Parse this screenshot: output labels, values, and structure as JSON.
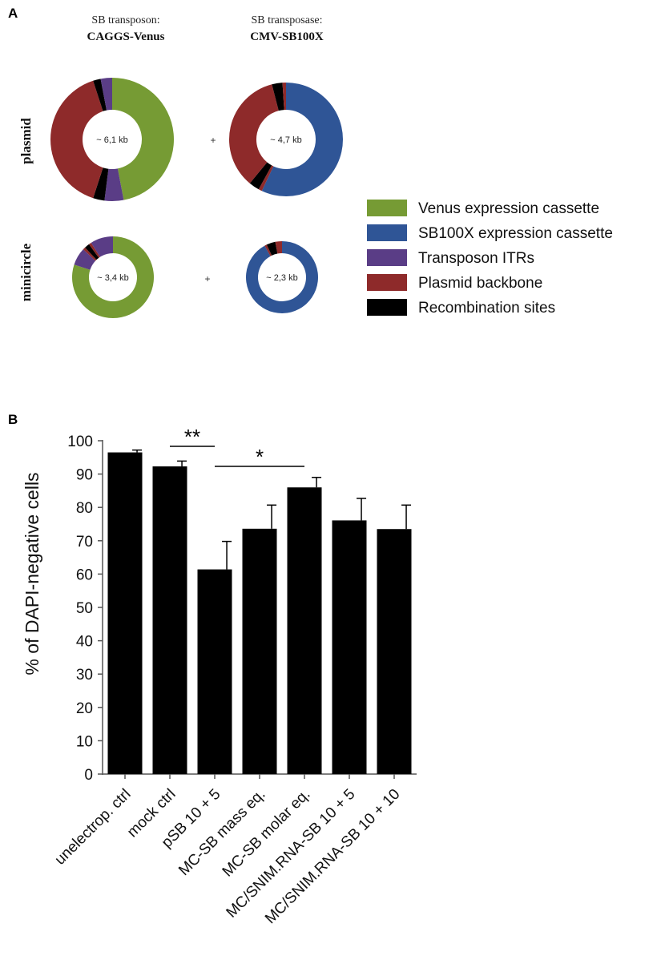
{
  "colors": {
    "venus": "#769b34",
    "sb100x": "#2f5596",
    "itr": "#5a3d86",
    "backbone": "#8e2a2a",
    "recomb": "#000000",
    "bar": "#000000"
  },
  "panel_a": {
    "letter": "A",
    "col1_title": "SB transposon:",
    "col1_name": "CAGGS-Venus",
    "col2_title": "SB transposase:",
    "col2_name": "CMV-SB100X",
    "row1_label": "plasmid",
    "row2_label": "minicircle",
    "plus": "+",
    "donut_labels": {
      "plasmid_venus": "~ 6,1 kb",
      "plasmid_sb": "~ 4,7 kb",
      "mc_venus": "~ 3,4 kb",
      "mc_sb": "~ 2,3 kb"
    },
    "legend": [
      {
        "label": "Venus expression cassette",
        "color_key": "venus"
      },
      {
        "label": "SB100X expression cassette",
        "color_key": "sb100x"
      },
      {
        "label": "Transposon ITRs",
        "color_key": "itr"
      },
      {
        "label": "Plasmid backbone",
        "color_key": "backbone"
      },
      {
        "label": "Recombination sites",
        "color_key": "recomb"
      }
    ]
  },
  "chart_data": [
    {
      "type": "pie",
      "title": "plasmid CAGGS-Venus",
      "center_label": "~ 6,1 kb",
      "slices": [
        {
          "name": "Venus expression cassette",
          "value": 47
        },
        {
          "name": "Transposon ITRs",
          "value": 5
        },
        {
          "name": "Recombination sites",
          "value": 3
        },
        {
          "name": "Plasmid backbone",
          "value": 40
        },
        {
          "name": "Recombination sites",
          "value": 2
        },
        {
          "name": "Transposon ITRs",
          "value": 3
        }
      ]
    },
    {
      "type": "pie",
      "title": "plasmid CMV-SB100X",
      "center_label": "~ 4,7 kb",
      "slices": [
        {
          "name": "SB100X expression cassette",
          "value": 57
        },
        {
          "name": "Plasmid backbone",
          "value": 1
        },
        {
          "name": "Recombination sites",
          "value": 3
        },
        {
          "name": "Plasmid backbone",
          "value": 35
        },
        {
          "name": "Recombination sites",
          "value": 3
        },
        {
          "name": "Plasmid backbone",
          "value": 1
        }
      ]
    },
    {
      "type": "pie",
      "title": "minicircle CAGGS-Venus",
      "center_label": "~ 3,4 kb",
      "slices": [
        {
          "name": "Venus expression cassette",
          "value": 80
        },
        {
          "name": "Transposon ITRs",
          "value": 7
        },
        {
          "name": "Plasmid backbone",
          "value": 1
        },
        {
          "name": "Recombination sites",
          "value": 2
        },
        {
          "name": "Plasmid backbone",
          "value": 1
        },
        {
          "name": "Transposon ITRs",
          "value": 9
        }
      ]
    },
    {
      "type": "pie",
      "title": "minicircle CMV-SB100X",
      "center_label": "~ 2,3 kb",
      "slices": [
        {
          "name": "SB100X expression cassette",
          "value": 92
        },
        {
          "name": "Plasmid backbone",
          "value": 1
        },
        {
          "name": "Recombination sites",
          "value": 4
        },
        {
          "name": "Plasmid backbone",
          "value": 3
        }
      ]
    },
    {
      "type": "bar",
      "panel_letter": "B",
      "ylabel": "% of DAPI-negative cells",
      "xlabel": "",
      "ylim": [
        0,
        100
      ],
      "yticks": [
        0,
        10,
        20,
        30,
        40,
        50,
        60,
        70,
        80,
        90,
        100
      ],
      "categories": [
        "unelectrop. ctrl",
        "mock ctrl",
        "pSB 10 + 5",
        "MC-SB mass eq.",
        "MC-SB molar eq.",
        "MC/SNIM.RNA-SB 10 + 5",
        "MC/SNIM.RNA-SB 10 + 10"
      ],
      "values": [
        96.5,
        92.3,
        61.4,
        73.6,
        86.0,
        76.1,
        73.5
      ],
      "errors": [
        0.7,
        1.6,
        8.4,
        7.1,
        3.0,
        6.6,
        7.2
      ],
      "significance": [
        {
          "from": 1,
          "to": 2,
          "label": "**"
        },
        {
          "from": 2,
          "to": 4,
          "label": "*"
        }
      ]
    }
  ]
}
